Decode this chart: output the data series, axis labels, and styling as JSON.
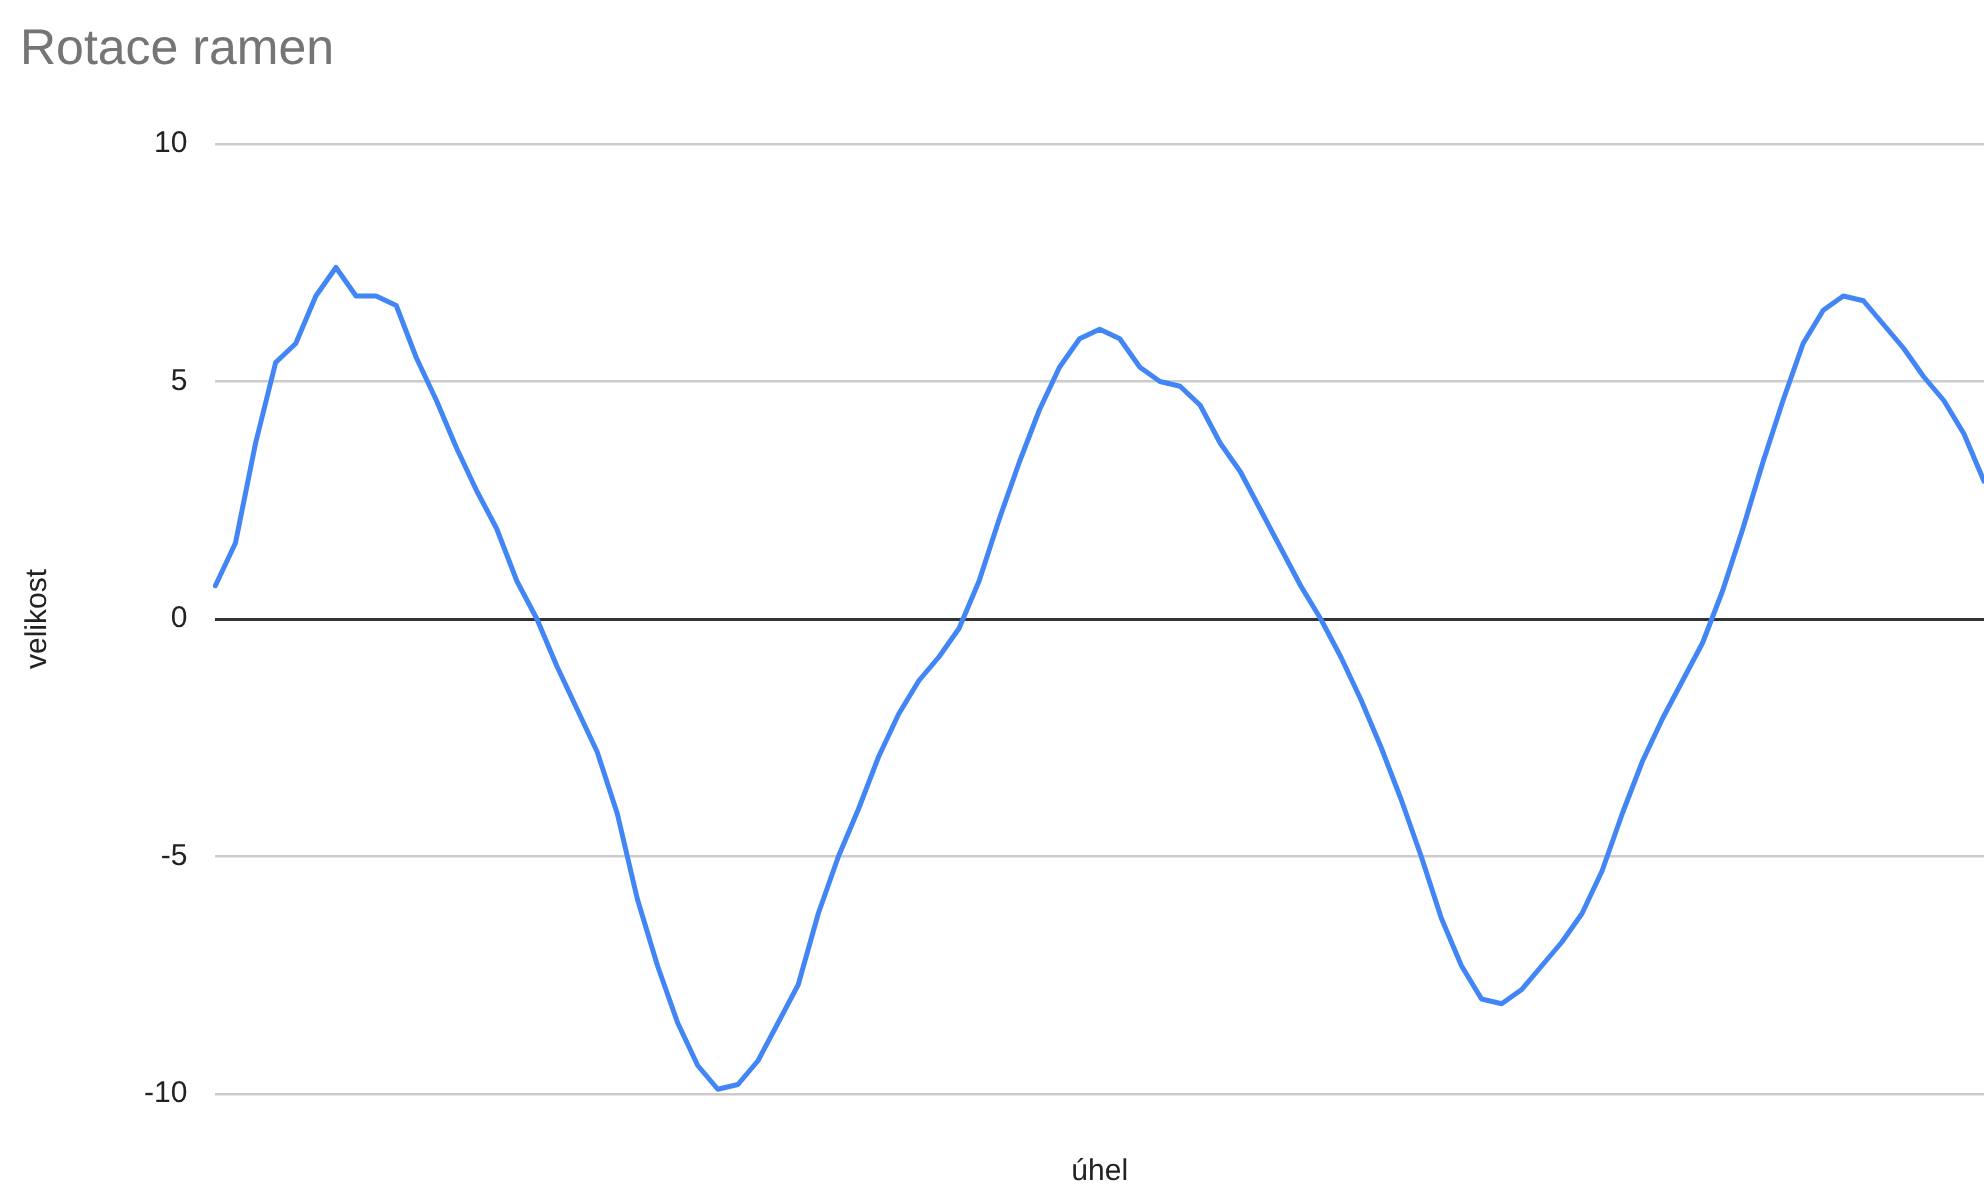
{
  "chart_data": {
    "type": "line",
    "title": "Rotace ramen",
    "xlabel": "úhel",
    "ylabel": "velikost",
    "categories": [
      null,
      null,
      null,
      null,
      null,
      null,
      null,
      null,
      null,
      null,
      null,
      null,
      null,
      null,
      null,
      null,
      null,
      null,
      null,
      null,
      null,
      null,
      null,
      null,
      null,
      null,
      null,
      null,
      null,
      null,
      null,
      null,
      null,
      null,
      null,
      null,
      null,
      null,
      null,
      null,
      null,
      null,
      null,
      null,
      null,
      null,
      null,
      null,
      null,
      null,
      null,
      null,
      null,
      null,
      null,
      null,
      null,
      null,
      null,
      null,
      null,
      null,
      null,
      null,
      null,
      null,
      null,
      null,
      null,
      null,
      null,
      null,
      null,
      null,
      null,
      null,
      null,
      null,
      null,
      null,
      null,
      null,
      null,
      null,
      null,
      null,
      null,
      null,
      null
    ],
    "series": [
      {
        "color": "#4285f4",
        "values": [
          0.7,
          1.6,
          3.7,
          5.4,
          5.8,
          6.8,
          7.4,
          6.8,
          6.8,
          6.6,
          5.5,
          4.6,
          3.6,
          2.7,
          1.9,
          0.8,
          0,
          -1.0,
          -1.9,
          -2.8,
          -4.1,
          -5.9,
          -7.3,
          -8.5,
          -9.4,
          -9.9,
          -9.8,
          -9.3,
          -8.5,
          -7.7,
          -6.2,
          -5.0,
          -4.0,
          -2.9,
          -2.0,
          -1.3,
          -0.8,
          -0.2,
          0.8,
          2.1,
          3.3,
          4.4,
          5.3,
          5.9,
          6.1,
          5.9,
          5.3,
          5.0,
          4.9,
          4.5,
          3.7,
          3.1,
          2.3,
          1.5,
          0.7,
          0,
          -0.8,
          -1.7,
          -2.7,
          -3.8,
          -5.0,
          -6.3,
          -7.3,
          -8.0,
          -8.1,
          -7.8,
          -7.3,
          -6.8,
          -6.2,
          -5.3,
          -4.1,
          -3.0,
          -2.1,
          -1.3,
          -0.5,
          0.6,
          1.9,
          3.3,
          4.6,
          5.8,
          6.5,
          6.8,
          6.7,
          6.2,
          5.7,
          5.1,
          4.6,
          3.9,
          2.9
        ]
      }
    ],
    "ylim": [
      -10,
      10
    ],
    "yticks": [
      -10,
      -5,
      0,
      5,
      10
    ],
    "grid": "y",
    "legend": false,
    "marker": "none",
    "line_style": "solid",
    "tick_labels": "y"
  }
}
